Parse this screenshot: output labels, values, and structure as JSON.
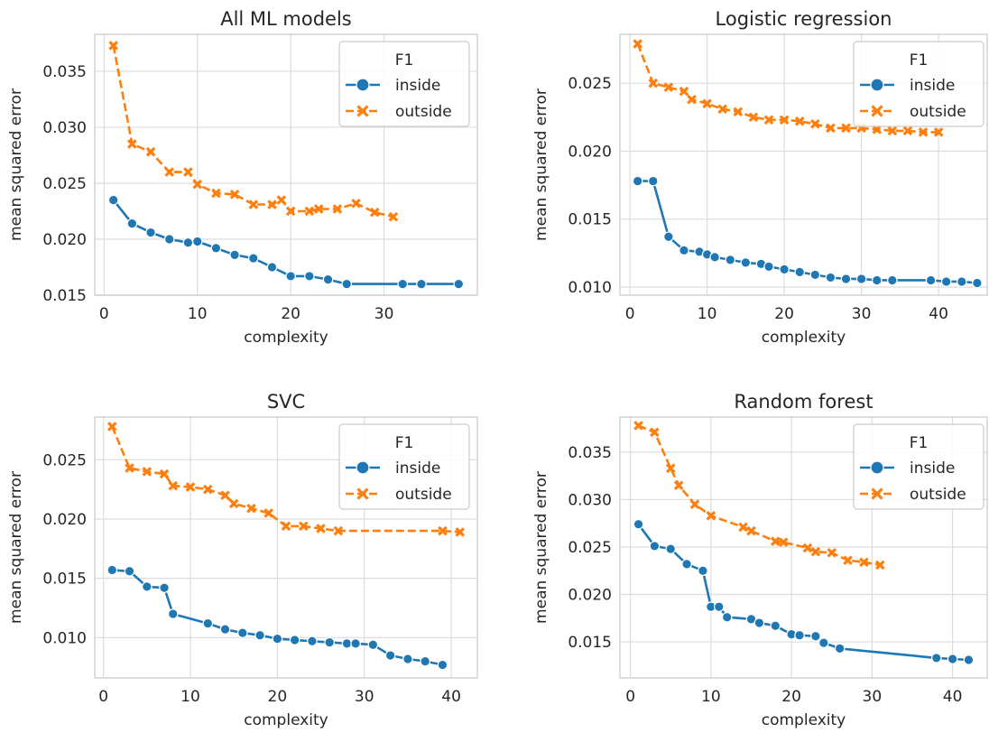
{
  "colors": {
    "inside": "#1f77b4",
    "outside": "#ff7f0e"
  },
  "chart_data": [
    {
      "type": "line",
      "title": "All ML models",
      "xlabel": "complexity",
      "ylabel": "mean squared error",
      "xlim": [
        -1,
        40
      ],
      "ylim": [
        0.015,
        0.0383
      ],
      "xticks": [
        0,
        10,
        20,
        30
      ],
      "yticks": [
        0.015,
        0.02,
        0.025,
        0.03,
        0.035
      ],
      "ytick_labels": [
        "0.015",
        "0.020",
        "0.025",
        "0.030",
        "0.035"
      ],
      "legend": {
        "title": "F1",
        "position": "top-right"
      },
      "series": [
        {
          "name": "inside",
          "marker": "circle",
          "x": [
            1,
            3,
            5,
            7,
            9,
            10,
            12,
            14,
            16,
            18,
            20,
            22,
            24,
            26,
            32,
            34,
            38
          ],
          "y": [
            0.0235,
            0.0214,
            0.0206,
            0.02,
            0.0197,
            0.0198,
            0.0192,
            0.0186,
            0.0183,
            0.0175,
            0.0167,
            0.0167,
            0.0164,
            0.016,
            0.016,
            0.016,
            0.016
          ]
        },
        {
          "name": "outside",
          "marker": "x",
          "x": [
            1,
            3,
            5,
            7,
            9,
            10,
            12,
            14,
            16,
            18,
            19,
            20,
            22,
            23,
            25,
            27,
            29,
            31
          ],
          "y": [
            0.0373,
            0.0285,
            0.0278,
            0.026,
            0.026,
            0.0249,
            0.0241,
            0.024,
            0.0231,
            0.0231,
            0.0235,
            0.0225,
            0.0225,
            0.0227,
            0.0227,
            0.0232,
            0.0224,
            0.022
          ]
        }
      ]
    },
    {
      "type": "line",
      "title": "Logistic regression",
      "xlabel": "complexity",
      "ylabel": "mean squared error",
      "xlim": [
        -1.3,
        46.3
      ],
      "ylim": [
        0.0094,
        0.0286
      ],
      "xticks": [
        0,
        10,
        20,
        30,
        40
      ],
      "yticks": [
        0.01,
        0.015,
        0.02,
        0.025
      ],
      "ytick_labels": [
        "0.010",
        "0.015",
        "0.020",
        "0.025"
      ],
      "legend": {
        "title": "F1",
        "position": "top-right"
      },
      "series": [
        {
          "name": "inside",
          "marker": "circle",
          "x": [
            1,
            3,
            5,
            7,
            9,
            10,
            11,
            13,
            15,
            17,
            18,
            20,
            22,
            24,
            26,
            28,
            30,
            32,
            34,
            39,
            41,
            43,
            45
          ],
          "y": [
            0.0178,
            0.0178,
            0.0137,
            0.0127,
            0.0126,
            0.0124,
            0.0122,
            0.012,
            0.0118,
            0.0117,
            0.0115,
            0.0113,
            0.0111,
            0.0109,
            0.0107,
            0.0106,
            0.0106,
            0.0105,
            0.0105,
            0.0105,
            0.0104,
            0.0104,
            0.0103
          ]
        },
        {
          "name": "outside",
          "marker": "x",
          "x": [
            1,
            3,
            5,
            7,
            8,
            10,
            12,
            14,
            16,
            18,
            20,
            22,
            24,
            26,
            28,
            30,
            32,
            34,
            36,
            38,
            40
          ],
          "y": [
            0.0279,
            0.025,
            0.0247,
            0.0244,
            0.0238,
            0.0235,
            0.0231,
            0.0229,
            0.0225,
            0.0223,
            0.0223,
            0.0222,
            0.022,
            0.0217,
            0.0217,
            0.0217,
            0.0216,
            0.0215,
            0.0215,
            0.0214,
            0.0214
          ]
        }
      ]
    },
    {
      "type": "line",
      "title": "SVC",
      "xlabel": "complexity",
      "ylabel": "mean squared error",
      "xlim": [
        -1,
        43
      ],
      "ylim": [
        0.0066,
        0.0286
      ],
      "xticks": [
        0,
        10,
        20,
        30,
        40
      ],
      "yticks": [
        0.01,
        0.015,
        0.02,
        0.025
      ],
      "ytick_labels": [
        "0.010",
        "0.015",
        "0.020",
        "0.025"
      ],
      "legend": {
        "title": "F1",
        "position": "top-right"
      },
      "series": [
        {
          "name": "inside",
          "marker": "circle",
          "x": [
            1,
            3,
            5,
            7,
            8,
            12,
            14,
            16,
            18,
            20,
            22,
            24,
            26,
            28,
            29,
            31,
            33,
            35,
            37,
            39
          ],
          "y": [
            0.0157,
            0.0156,
            0.0143,
            0.0142,
            0.012,
            0.0112,
            0.0107,
            0.0104,
            0.0102,
            0.0099,
            0.0098,
            0.0097,
            0.0096,
            0.0095,
            0.0095,
            0.0094,
            0.0085,
            0.0082,
            0.008,
            0.0077
          ]
        },
        {
          "name": "outside",
          "marker": "x",
          "x": [
            1,
            3,
            5,
            7,
            8,
            10,
            12,
            14,
            15,
            17,
            19,
            21,
            23,
            25,
            27,
            39,
            41
          ],
          "y": [
            0.0278,
            0.0243,
            0.024,
            0.0238,
            0.0228,
            0.0227,
            0.0225,
            0.022,
            0.0213,
            0.0209,
            0.0205,
            0.0194,
            0.0194,
            0.0192,
            0.019,
            0.019,
            0.0189
          ]
        }
      ]
    },
    {
      "type": "line",
      "title": "Random forest",
      "xlabel": "complexity",
      "ylabel": "mean squared error",
      "xlim": [
        -1.3,
        44.3
      ],
      "ylim": [
        0.0112,
        0.0387
      ],
      "xticks": [
        0,
        10,
        20,
        30,
        40
      ],
      "yticks": [
        0.015,
        0.02,
        0.025,
        0.03,
        0.035
      ],
      "ytick_labels": [
        "0.015",
        "0.020",
        "0.025",
        "0.030",
        "0.035"
      ],
      "legend": {
        "title": "F1",
        "position": "top-right"
      },
      "series": [
        {
          "name": "inside",
          "marker": "circle",
          "x": [
            1,
            3,
            5,
            7,
            9,
            10,
            11,
            12,
            15,
            16,
            18,
            20,
            21,
            23,
            24,
            26,
            38,
            40,
            42
          ],
          "y": [
            0.0274,
            0.0251,
            0.0248,
            0.0232,
            0.0225,
            0.0187,
            0.0187,
            0.0176,
            0.0174,
            0.017,
            0.0167,
            0.0158,
            0.0157,
            0.0156,
            0.0149,
            0.0143,
            0.0133,
            0.0132,
            0.0131
          ]
        },
        {
          "name": "outside",
          "marker": "x",
          "x": [
            1,
            3,
            5,
            6,
            8,
            10,
            14,
            15,
            18,
            19,
            22,
            23,
            25,
            27,
            29,
            31
          ],
          "y": [
            0.0378,
            0.0371,
            0.0333,
            0.0315,
            0.0295,
            0.0283,
            0.0271,
            0.0267,
            0.0256,
            0.0255,
            0.0249,
            0.0245,
            0.0244,
            0.0236,
            0.0234,
            0.0231
          ]
        }
      ]
    }
  ]
}
